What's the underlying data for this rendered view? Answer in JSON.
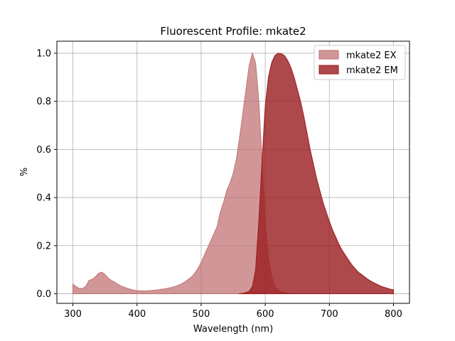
{
  "chart_data": {
    "type": "area",
    "title": "Fluorescent Profile: mkate2",
    "xlabel": "Wavelength (nm)",
    "ylabel": "%",
    "xlim": [
      275,
      825
    ],
    "ylim": [
      -0.04,
      1.05
    ],
    "xticks": [
      300,
      400,
      500,
      600,
      700,
      800
    ],
    "yticks": [
      0.0,
      0.2,
      0.4,
      0.6,
      0.8,
      1.0
    ],
    "grid": true,
    "legend_position": "top-right",
    "series": [
      {
        "name": "mkate2 EX",
        "color": "#be6b6c",
        "opacity": 0.7,
        "x": [
          300,
          305,
          310,
          315,
          320,
          325,
          330,
          335,
          340,
          345,
          350,
          355,
          360,
          365,
          370,
          375,
          380,
          385,
          390,
          395,
          400,
          405,
          410,
          415,
          420,
          425,
          430,
          435,
          440,
          445,
          450,
          455,
          460,
          465,
          470,
          475,
          480,
          485,
          490,
          495,
          500,
          505,
          510,
          515,
          520,
          525,
          530,
          535,
          540,
          545,
          550,
          555,
          560,
          565,
          570,
          575,
          580,
          585,
          590,
          595,
          600,
          605,
          610,
          615,
          620,
          625,
          630,
          635,
          640
        ],
        "y": [
          0.04,
          0.03,
          0.022,
          0.022,
          0.03,
          0.055,
          0.06,
          0.07,
          0.085,
          0.09,
          0.08,
          0.065,
          0.055,
          0.048,
          0.04,
          0.032,
          0.027,
          0.022,
          0.018,
          0.015,
          0.013,
          0.012,
          0.012,
          0.012,
          0.013,
          0.014,
          0.015,
          0.017,
          0.019,
          0.021,
          0.024,
          0.027,
          0.031,
          0.036,
          0.042,
          0.05,
          0.06,
          0.07,
          0.085,
          0.105,
          0.13,
          0.16,
          0.19,
          0.22,
          0.25,
          0.28,
          0.34,
          0.38,
          0.43,
          0.46,
          0.5,
          0.56,
          0.65,
          0.75,
          0.85,
          0.95,
          1.0,
          0.96,
          0.8,
          0.55,
          0.3,
          0.15,
          0.07,
          0.03,
          0.015,
          0.008,
          0.004,
          0.002,
          0.0
        ]
      },
      {
        "name": "mkate2 EM",
        "color": "#9a1c1e",
        "opacity": 0.8,
        "x": [
          560,
          565,
          570,
          575,
          580,
          585,
          590,
          595,
          600,
          605,
          610,
          615,
          620,
          625,
          630,
          635,
          640,
          645,
          650,
          655,
          660,
          665,
          670,
          675,
          680,
          685,
          690,
          695,
          700,
          705,
          710,
          715,
          720,
          725,
          730,
          735,
          740,
          745,
          750,
          755,
          760,
          765,
          770,
          775,
          780,
          785,
          790,
          795,
          800
        ],
        "y": [
          0.0,
          0.002,
          0.005,
          0.01,
          0.03,
          0.1,
          0.3,
          0.55,
          0.78,
          0.9,
          0.96,
          0.99,
          1.0,
          0.998,
          0.99,
          0.97,
          0.94,
          0.9,
          0.85,
          0.8,
          0.74,
          0.67,
          0.6,
          0.54,
          0.48,
          0.43,
          0.38,
          0.34,
          0.3,
          0.265,
          0.235,
          0.205,
          0.18,
          0.16,
          0.14,
          0.12,
          0.105,
          0.09,
          0.08,
          0.07,
          0.06,
          0.052,
          0.045,
          0.038,
          0.032,
          0.027,
          0.023,
          0.019,
          0.016
        ]
      }
    ]
  }
}
